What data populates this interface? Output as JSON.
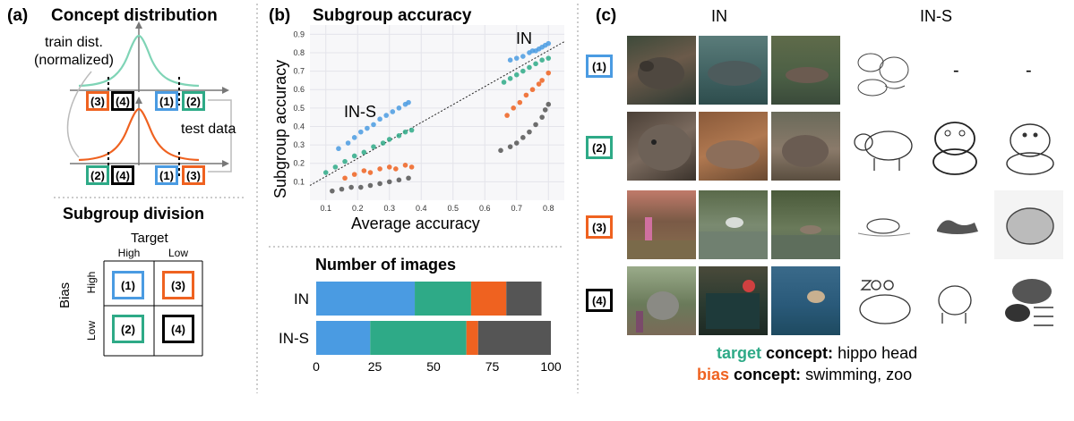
{
  "panel_a": {
    "label": "(a)",
    "title": "Concept distribution",
    "train_label_line1": "train dist.",
    "train_label_line2": "(normalized)",
    "test_label": "test data",
    "top_boxes": [
      "(3)",
      "(4)",
      "(1)",
      "(2)"
    ],
    "bottom_boxes": [
      "(2)",
      "(4)",
      "(1)",
      "(3)"
    ],
    "division_title": "Subgroup division",
    "target_label": "Target",
    "bias_label": "Bias",
    "high": "High",
    "low": "Low",
    "grid": [
      "(1)",
      "(3)",
      "(2)",
      "(4)"
    ]
  },
  "panel_b": {
    "label": "(b)",
    "title": "Subgroup accuracy",
    "ylabel": "Subgroup accuracy",
    "xlabel": "Average accuracy",
    "label_in": "IN",
    "label_ins": "IN-S",
    "x_ticks": [
      "0.1",
      "0.2",
      "0.3",
      "0.4",
      "0.5",
      "0.6",
      "0.7",
      "0.8"
    ],
    "y_ticks": [
      "0.1",
      "0.2",
      "0.3",
      "0.4",
      "0.5",
      "0.6",
      "0.7",
      "0.8",
      "0.9"
    ],
    "bar_title": "Number of images",
    "bar_x_ticks": [
      "0",
      "25",
      "50",
      "75",
      "100"
    ]
  },
  "panel_c": {
    "label": "(c)",
    "col_in": "IN",
    "col_ins": "IN-S",
    "rows": [
      "(1)",
      "(2)",
      "(3)",
      "(4)"
    ],
    "dash": "-",
    "target_word": "target",
    "bias_word": "bias",
    "concept_word": "concept:",
    "target_value": "hippo head",
    "bias_value": "swimming, zoo"
  },
  "colors": {
    "g1": "#4a9be2",
    "g2": "#2eaa87",
    "g3": "#ef6220",
    "g4": "#555555",
    "curve_top": "#7fd4b6",
    "curve_bottom": "#ef6220"
  },
  "chart_data": [
    {
      "type": "scatter",
      "title": "Subgroup accuracy",
      "xlabel": "Average accuracy",
      "ylabel": "Subgroup accuracy",
      "xlim": [
        0.05,
        0.85
      ],
      "ylim": [
        0.0,
        0.95
      ],
      "series": [
        {
          "name": "(1) IN-S",
          "color": "#4a9be2",
          "points": [
            [
              0.14,
              0.28
            ],
            [
              0.17,
              0.31
            ],
            [
              0.19,
              0.34
            ],
            [
              0.21,
              0.37
            ],
            [
              0.23,
              0.39
            ],
            [
              0.25,
              0.41
            ],
            [
              0.27,
              0.44
            ],
            [
              0.29,
              0.46
            ],
            [
              0.31,
              0.48
            ],
            [
              0.33,
              0.5
            ],
            [
              0.35,
              0.52
            ],
            [
              0.36,
              0.53
            ]
          ]
        },
        {
          "name": "(2) IN-S",
          "color": "#2eaa87",
          "points": [
            [
              0.1,
              0.15
            ],
            [
              0.13,
              0.18
            ],
            [
              0.16,
              0.21
            ],
            [
              0.19,
              0.24
            ],
            [
              0.22,
              0.26
            ],
            [
              0.25,
              0.29
            ],
            [
              0.28,
              0.31
            ],
            [
              0.3,
              0.33
            ],
            [
              0.33,
              0.35
            ],
            [
              0.35,
              0.37
            ],
            [
              0.37,
              0.38
            ]
          ]
        },
        {
          "name": "(3) IN-S",
          "color": "#ef6220",
          "points": [
            [
              0.16,
              0.12
            ],
            [
              0.19,
              0.14
            ],
            [
              0.22,
              0.16
            ],
            [
              0.24,
              0.15
            ],
            [
              0.27,
              0.17
            ],
            [
              0.3,
              0.18
            ],
            [
              0.32,
              0.17
            ],
            [
              0.35,
              0.19
            ],
            [
              0.37,
              0.18
            ]
          ]
        },
        {
          "name": "(4) IN-S",
          "color": "#555555",
          "points": [
            [
              0.12,
              0.05
            ],
            [
              0.15,
              0.06
            ],
            [
              0.18,
              0.07
            ],
            [
              0.21,
              0.07
            ],
            [
              0.24,
              0.08
            ],
            [
              0.27,
              0.09
            ],
            [
              0.3,
              0.1
            ],
            [
              0.33,
              0.11
            ],
            [
              0.36,
              0.12
            ]
          ]
        },
        {
          "name": "(1) IN",
          "color": "#4a9be2",
          "points": [
            [
              0.68,
              0.76
            ],
            [
              0.7,
              0.77
            ],
            [
              0.72,
              0.78
            ],
            [
              0.74,
              0.8
            ],
            [
              0.75,
              0.81
            ],
            [
              0.76,
              0.81
            ],
            [
              0.77,
              0.82
            ],
            [
              0.78,
              0.83
            ],
            [
              0.79,
              0.84
            ],
            [
              0.8,
              0.85
            ]
          ]
        },
        {
          "name": "(2) IN",
          "color": "#2eaa87",
          "points": [
            [
              0.66,
              0.64
            ],
            [
              0.68,
              0.66
            ],
            [
              0.7,
              0.68
            ],
            [
              0.72,
              0.7
            ],
            [
              0.74,
              0.72
            ],
            [
              0.76,
              0.74
            ],
            [
              0.78,
              0.76
            ],
            [
              0.8,
              0.77
            ]
          ]
        },
        {
          "name": "(3) IN",
          "color": "#ef6220",
          "points": [
            [
              0.67,
              0.46
            ],
            [
              0.69,
              0.5
            ],
            [
              0.71,
              0.53
            ],
            [
              0.73,
              0.57
            ],
            [
              0.75,
              0.6
            ],
            [
              0.77,
              0.63
            ],
            [
              0.78,
              0.65
            ],
            [
              0.8,
              0.69
            ]
          ]
        },
        {
          "name": "(4) IN",
          "color": "#555555",
          "points": [
            [
              0.65,
              0.27
            ],
            [
              0.68,
              0.29
            ],
            [
              0.7,
              0.31
            ],
            [
              0.72,
              0.34
            ],
            [
              0.74,
              0.37
            ],
            [
              0.76,
              0.41
            ],
            [
              0.78,
              0.45
            ],
            [
              0.79,
              0.49
            ],
            [
              0.8,
              0.52
            ]
          ]
        }
      ],
      "reference_line": [
        [
          0.05,
          0.08
        ],
        [
          0.85,
          0.86
        ]
      ]
    },
    {
      "type": "bar",
      "title": "Number of images",
      "orientation": "horizontal",
      "stacked": true,
      "categories": [
        "IN",
        "IN-S"
      ],
      "xlim": [
        0,
        100
      ],
      "series": [
        {
          "name": "(1)",
          "color": "#4a9be2",
          "values": [
            42,
            23
          ]
        },
        {
          "name": "(2)",
          "color": "#2eaa87",
          "values": [
            24,
            41
          ]
        },
        {
          "name": "(3)",
          "color": "#ef6220",
          "values": [
            15,
            5
          ]
        },
        {
          "name": "(4)",
          "color": "#555555",
          "values": [
            15,
            31
          ]
        }
      ]
    }
  ]
}
